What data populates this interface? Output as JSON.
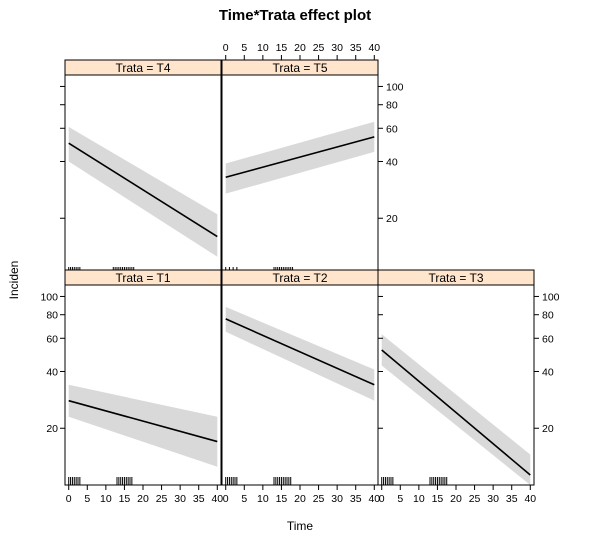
{
  "chart_data": {
    "type": "line",
    "title": "Time*Trata effect plot",
    "xlabel": "Time",
    "ylabel": "Inciden",
    "xlim": [
      -1,
      41
    ],
    "ylim": [
      10,
      115
    ],
    "y_scale": "log",
    "x_ticks": [
      0,
      5,
      10,
      15,
      20,
      25,
      30,
      35,
      40
    ],
    "y_ticks": [
      20,
      40,
      60,
      80,
      100
    ],
    "confidence_band": true,
    "rug": true,
    "panels": [
      {
        "label": "Trata = T4",
        "fit": [
          {
            "x": 0,
            "y": 50
          },
          {
            "x": 40,
            "y": 16
          }
        ],
        "band_upper": [
          {
            "x": 0,
            "y": 61
          },
          {
            "x": 40,
            "y": 21
          }
        ],
        "band_lower": [
          {
            "x": 0,
            "y": 40
          },
          {
            "x": 40,
            "y": 12.5
          }
        ],
        "rug": [
          0,
          0.5,
          1,
          1.5,
          2,
          2.5,
          3,
          12,
          12.5,
          13,
          13.5,
          14,
          14.5,
          15,
          15.5,
          16,
          16.5,
          17,
          17.5
        ]
      },
      {
        "label": "Trata = T5",
        "fit": [
          {
            "x": 0,
            "y": 33
          },
          {
            "x": 40,
            "y": 54
          }
        ],
        "band_upper": [
          {
            "x": 0,
            "y": 39
          },
          {
            "x": 40,
            "y": 65
          }
        ],
        "band_lower": [
          {
            "x": 0,
            "y": 27
          },
          {
            "x": 40,
            "y": 45
          }
        ],
        "rug": [
          0,
          1,
          2,
          3,
          13,
          13.5,
          14,
          14.5,
          15,
          15.5,
          16,
          16.5,
          17,
          17.5,
          18
        ]
      },
      {
        "label": "Trata = T1",
        "fit": [
          {
            "x": 0,
            "y": 28
          },
          {
            "x": 40,
            "y": 17
          }
        ],
        "band_upper": [
          {
            "x": 0,
            "y": 34
          },
          {
            "x": 40,
            "y": 23
          }
        ],
        "band_lower": [
          {
            "x": 0,
            "y": 23
          },
          {
            "x": 40,
            "y": 12.5
          }
        ],
        "rug": [
          0,
          0.5,
          1,
          1.5,
          2,
          2.5,
          3,
          13,
          13.5,
          14,
          14.5,
          15,
          15.5,
          16,
          16.5,
          17
        ]
      },
      {
        "label": "Trata = T2",
        "fit": [
          {
            "x": 0,
            "y": 76
          },
          {
            "x": 40,
            "y": 34
          }
        ],
        "band_upper": [
          {
            "x": 0,
            "y": 88
          },
          {
            "x": 40,
            "y": 41
          }
        ],
        "band_lower": [
          {
            "x": 0,
            "y": 65
          },
          {
            "x": 40,
            "y": 28
          }
        ],
        "rug": [
          0,
          0.5,
          1,
          1.5,
          2,
          2.5,
          3,
          13,
          13.5,
          14,
          14.5,
          15,
          15.5,
          16,
          16.5,
          17,
          17.5
        ]
      },
      {
        "label": "Trata = T3",
        "fit": [
          {
            "x": 0,
            "y": 52
          },
          {
            "x": 40,
            "y": 11.3
          }
        ],
        "band_upper": [
          {
            "x": 0,
            "y": 63
          },
          {
            "x": 40,
            "y": 14.5
          }
        ],
        "band_lower": [
          {
            "x": 0,
            "y": 43
          },
          {
            "x": 40,
            "y": 10
          }
        ],
        "rug": [
          0,
          0.5,
          1,
          1.5,
          2,
          2.5,
          3,
          13,
          13.5,
          14,
          14.5,
          15,
          15.5,
          16,
          16.5,
          17,
          17.5
        ]
      }
    ]
  }
}
